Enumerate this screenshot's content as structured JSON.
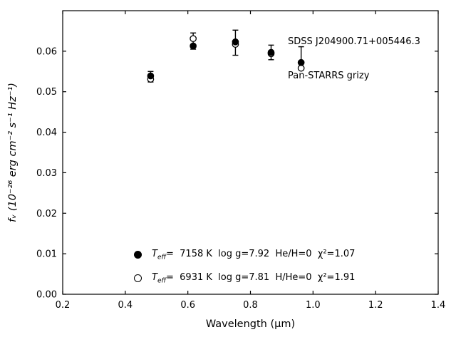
{
  "figure": {
    "annotation": {
      "line1": "SDSS J204900.71+005446.3",
      "line2": "Pan-STARRS grizy"
    }
  },
  "chart_data": {
    "type": "scatter",
    "title": "",
    "xlabel": "Wavelength (μm)",
    "ylabel": "fᵥ (10⁻²⁶ erg cm⁻² s⁻¹ Hz⁻¹)",
    "xlim": [
      0.2,
      1.4
    ],
    "ylim": [
      0.0,
      0.07
    ],
    "grid": false,
    "frame": "box",
    "tick_direction": "in",
    "xticks": [
      0.2,
      0.4,
      0.6,
      0.8,
      1.0,
      1.2,
      1.4
    ],
    "xtick_labels": [
      "0.2",
      "0.4",
      "0.6",
      "0.8",
      "1.0",
      "1.2",
      "1.4"
    ],
    "yticks": [
      0.0,
      0.01,
      0.02,
      0.03,
      0.04,
      0.05,
      0.06
    ],
    "ytick_labels": [
      "0.00",
      "0.01",
      "0.02",
      "0.03",
      "0.04",
      "0.05",
      "0.06"
    ],
    "wavelengths_um": [
      0.481,
      0.617,
      0.752,
      0.866,
      0.962
    ],
    "bands": [
      "g",
      "r",
      "i",
      "z",
      "y"
    ],
    "series": [
      {
        "name": "observed-photometry",
        "type": "errorbar",
        "x": [
          0.481,
          0.617,
          0.752,
          0.866,
          0.962
        ],
        "y": [
          0.0537,
          0.0625,
          0.0621,
          0.0597,
          0.0583
        ],
        "yerr": [
          0.0013,
          0.002,
          0.0031,
          0.0018,
          0.0028
        ]
      },
      {
        "name": "model-he-atmosphere",
        "type": "points",
        "marker": "open-circle",
        "x": [
          0.481,
          0.617,
          0.752,
          0.866,
          0.962
        ],
        "y": [
          0.0531,
          0.0631,
          0.0617,
          0.0594,
          0.0558
        ]
      },
      {
        "name": "model-h-atmosphere",
        "type": "points",
        "marker": "filled-circle",
        "x": [
          0.481,
          0.617,
          0.752,
          0.866,
          0.962
        ],
        "y": [
          0.0539,
          0.0613,
          0.0623,
          0.0597,
          0.0572
        ]
      }
    ],
    "legend": [
      {
        "marker": "filled-circle",
        "t_prefix": "T",
        "t_sub": "eff",
        "rest": "=  7158 K  log g=7.92  He/H=0  χ²=1.07"
      },
      {
        "marker": "open-circle",
        "t_prefix": "T",
        "t_sub": "eff",
        "rest": "=  6931 K  log g=7.81  H/He=0  χ²=1.91"
      }
    ],
    "legend_position": "inside lower-left-of-center"
  }
}
